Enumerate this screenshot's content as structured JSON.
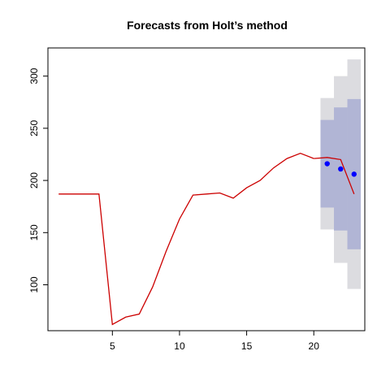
{
  "chart_data": {
    "type": "line",
    "title": "Forecasts from Holt’s method",
    "xlabel": "",
    "ylabel": "",
    "xlim": [
      0.2,
      23.8
    ],
    "ylim": [
      56,
      327
    ],
    "x_ticks": [
      5,
      10,
      15,
      20
    ],
    "y_ticks": [
      100,
      150,
      200,
      250,
      300
    ],
    "grid": false,
    "legend": "none",
    "series": [
      {
        "kind": "history-line",
        "color": "#cc0000",
        "x": [
          1,
          2,
          3,
          4,
          5,
          6,
          7,
          8,
          9,
          10,
          11,
          12,
          13,
          14,
          15,
          16,
          17,
          18,
          19,
          20
        ],
        "values": [
          187,
          187,
          187,
          187,
          62,
          69,
          72,
          98,
          132,
          163,
          186,
          187,
          188,
          183,
          193,
          200,
          212,
          221,
          226,
          221
        ]
      },
      {
        "kind": "point-forecast-line",
        "color": "#cc0000",
        "x": [
          20,
          21,
          22,
          23
        ],
        "values": [
          221,
          222,
          220,
          187
        ]
      },
      {
        "kind": "actual-points",
        "color": "#0000ff",
        "x": [
          21,
          22,
          23
        ],
        "values": [
          216,
          211,
          206
        ]
      }
    ],
    "forecast_intervals": {
      "x": [
        21,
        22,
        23
      ],
      "lo80": [
        174,
        152,
        134
      ],
      "hi80": [
        258,
        270,
        278
      ],
      "lo95": [
        153,
        121,
        96
      ],
      "hi95": [
        279,
        300,
        316
      ],
      "color_80": "#b1b5d5",
      "color_95": "#dcdce0"
    }
  }
}
